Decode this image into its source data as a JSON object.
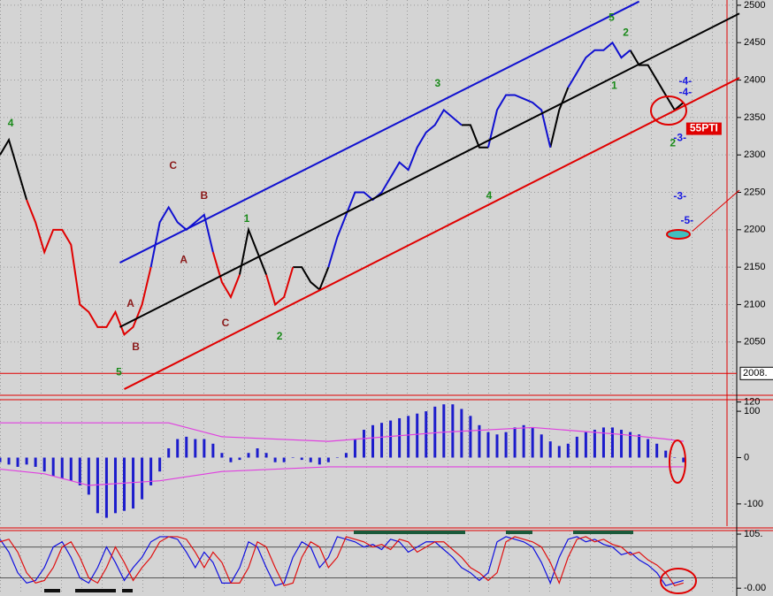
{
  "chart_data": [
    {
      "type": "line",
      "xlim": [
        0,
        83
      ],
      "ylim": [
        1980,
        2507
      ],
      "yticks": [
        2050,
        2100,
        2150,
        2200,
        2250,
        2300,
        2350,
        2400,
        2450,
        2500
      ],
      "grid": true,
      "marker_line": {
        "value": 2008,
        "label": "2008.",
        "color": "#e00000"
      },
      "series": [
        {
          "color": "#000000",
          "values": [
            2300,
            2320,
            2280,
            2240,
            null,
            null,
            null,
            null,
            null,
            null,
            null,
            null,
            null,
            null,
            null,
            null,
            null,
            null,
            null,
            null,
            null,
            null,
            null,
            null,
            null,
            null,
            null,
            2140,
            2200,
            2170,
            2140,
            null,
            null,
            2150,
            2150,
            2130,
            2120,
            2150,
            null,
            null,
            null,
            null,
            null,
            null,
            null,
            null,
            null,
            null,
            null,
            null,
            null,
            null,
            2340,
            2340,
            2310,
            2310,
            null,
            null,
            null,
            null,
            null,
            null,
            2310,
            2360,
            2390,
            null,
            null,
            null,
            null,
            null,
            null,
            2440,
            2420,
            2420,
            2400,
            2380,
            2360,
            2370
          ]
        },
        {
          "color": "#e00000",
          "values": [
            null,
            null,
            null,
            2240,
            2210,
            2170,
            2200,
            2200,
            2180,
            2100,
            2090,
            2070,
            2070,
            2090,
            2060,
            2070,
            2100,
            2150,
            null,
            null,
            null,
            null,
            null,
            null,
            2170,
            2130,
            2110,
            2140,
            null,
            null,
            2140,
            2100,
            2110,
            2150,
            null,
            null,
            null,
            null,
            null,
            null,
            null,
            null,
            null,
            null,
            null,
            null,
            null,
            null,
            null,
            null,
            null,
            null,
            null,
            null,
            null,
            null,
            null,
            null,
            null,
            null,
            null,
            null,
            null,
            null,
            null,
            null,
            null,
            null,
            null,
            null,
            null,
            null,
            null,
            null,
            null,
            null,
            null,
            null
          ]
        },
        {
          "color": "#1010d0",
          "values": [
            null,
            null,
            null,
            null,
            null,
            null,
            null,
            null,
            null,
            null,
            null,
            null,
            null,
            null,
            null,
            null,
            null,
            2150,
            2210,
            2230,
            2210,
            2200,
            2210,
            2220,
            2170,
            null,
            null,
            null,
            null,
            null,
            null,
            null,
            null,
            null,
            null,
            null,
            null,
            2150,
            2190,
            2220,
            2250,
            2250,
            2240,
            2250,
            2270,
            2290,
            2280,
            2310,
            2330,
            2340,
            2360,
            2350,
            2340,
            null,
            null,
            2310,
            2360,
            2380,
            2380,
            2375,
            2370,
            2360,
            2310,
            null,
            2390,
            2410,
            2430,
            2440,
            2440,
            2450,
            2430,
            2440,
            null,
            null,
            null,
            null,
            null,
            null
          ]
        }
      ],
      "trend_lines": [
        {
          "color": "#1010d0",
          "x": [
            13.5,
            72
          ],
          "values": [
            2156,
            2505
          ]
        },
        {
          "color": "#000000",
          "x": [
            13.5,
            83.3
          ],
          "values": [
            2070,
            2489
          ]
        },
        {
          "color": "#e00000",
          "x": [
            14,
            83.3
          ],
          "values": [
            1987,
            2403
          ]
        },
        {
          "color": "#e00000",
          "x": [
            78,
            83.3
          ],
          "values": [
            2198,
            2253
          ]
        }
      ],
      "annotations": [
        {
          "text": "4",
          "x": 1.2,
          "y": 2342,
          "color": "#1a8a1a"
        },
        {
          "text": "C",
          "x": 19.5,
          "y": 2285,
          "color": "#8b1a1a"
        },
        {
          "text": "B",
          "x": 23,
          "y": 2245,
          "color": "#8b1a1a"
        },
        {
          "text": "A",
          "x": 20.7,
          "y": 2159,
          "color": "#8b1a1a"
        },
        {
          "text": "1",
          "x": 27.8,
          "y": 2214,
          "color": "#1a8a1a"
        },
        {
          "text": "A",
          "x": 14.7,
          "y": 2101,
          "color": "#8b1a1a"
        },
        {
          "text": "B",
          "x": 15.3,
          "y": 2043,
          "color": "#8b1a1a"
        },
        {
          "text": "C",
          "x": 25.4,
          "y": 2075,
          "color": "#8b1a1a"
        },
        {
          "text": "2",
          "x": 31.5,
          "y": 2057,
          "color": "#1a8a1a"
        },
        {
          "text": "5",
          "x": 13.4,
          "y": 2009,
          "color": "#1a8a1a"
        },
        {
          "text": "3",
          "x": 49.3,
          "y": 2395,
          "color": "#1a8a1a"
        },
        {
          "text": "4",
          "x": 55.1,
          "y": 2245,
          "color": "#1a8a1a"
        },
        {
          "text": "5",
          "x": 68.9,
          "y": 2483,
          "color": "#1a8a1a"
        },
        {
          "text": "2",
          "x": 70.5,
          "y": 2463,
          "color": "#1a8a1a"
        },
        {
          "text": "1",
          "x": 69.2,
          "y": 2392,
          "color": "#1a8a1a"
        },
        {
          "text": "-4-",
          "x": 77.2,
          "y": 2398,
          "color": "#1a1ae0"
        },
        {
          "text": "-4-",
          "x": 77.2,
          "y": 2383,
          "color": "#1a1ae0"
        },
        {
          "text": "-3-",
          "x": 76.6,
          "y": 2322,
          "color": "#1a1ae0"
        },
        {
          "text": "2",
          "x": 75.8,
          "y": 2315,
          "color": "#1a8a1a"
        },
        {
          "text": "-3-",
          "x": 76.6,
          "y": 2244,
          "color": "#1a1ae0"
        },
        {
          "text": "-5-",
          "x": 77.4,
          "y": 2212,
          "color": "#1a1ae0"
        },
        {
          "text": "55PTI",
          "x": 79.3,
          "y": 2335,
          "color": "#e00000",
          "boxed": true
        }
      ]
    },
    {
      "type": "bar",
      "xlim": [
        0,
        83
      ],
      "ylim": [
        -148,
        125
      ],
      "yticks": [
        120,
        100,
        0,
        -100
      ],
      "color": "#1c1ccc",
      "values": [
        -10,
        -15,
        -20,
        -15,
        -20,
        -30,
        -40,
        -45,
        -50,
        -60,
        -80,
        -120,
        -130,
        -120,
        -115,
        -110,
        -90,
        -60,
        -30,
        20,
        40,
        45,
        40,
        40,
        30,
        10,
        -10,
        -5,
        10,
        20,
        10,
        -10,
        -10,
        0,
        -5,
        -10,
        -15,
        -10,
        0,
        10,
        40,
        60,
        70,
        75,
        80,
        85,
        90,
        95,
        100,
        110,
        115,
        115,
        105,
        90,
        70,
        55,
        50,
        55,
        65,
        70,
        65,
        50,
        35,
        25,
        30,
        45,
        55,
        60,
        65,
        65,
        60,
        55,
        50,
        40,
        30,
        15,
        0,
        -10
      ],
      "bands": [
        {
          "color": "#e040e0",
          "x": [
            0,
            19,
            25,
            37,
            50,
            60,
            70,
            75,
            77
          ],
          "values": [
            75,
            75,
            45,
            35,
            55,
            65,
            50,
            40,
            35
          ]
        },
        {
          "color": "#e040e0",
          "x": [
            0,
            5,
            10,
            18,
            25,
            37,
            77
          ],
          "values": [
            -25,
            -35,
            -60,
            -50,
            -30,
            -20,
            -20
          ]
        }
      ]
    },
    {
      "type": "line",
      "xlim": [
        0,
        83
      ],
      "ylim": [
        -11.7,
        111.9
      ],
      "yticks": [
        {
          "value": 105,
          "label": "105."
        },
        {
          "value": 0,
          "label": "-0.00"
        }
      ],
      "levels": [
        80,
        20
      ],
      "series": [
        {
          "color": "#1010e0",
          "values": [
            95,
            70,
            30,
            10,
            15,
            40,
            80,
            90,
            60,
            20,
            10,
            40,
            80,
            50,
            15,
            40,
            60,
            90,
            100,
            100,
            95,
            70,
            40,
            70,
            50,
            10,
            10,
            40,
            90,
            80,
            40,
            5,
            10,
            60,
            90,
            80,
            40,
            60,
            100,
            95,
            90,
            80,
            85,
            75,
            95,
            90,
            70,
            80,
            90,
            90,
            75,
            60,
            40,
            30,
            15,
            30,
            90,
            100,
            95,
            90,
            80,
            50,
            10,
            60,
            95,
            100,
            90,
            95,
            85,
            80,
            65,
            70,
            55,
            45,
            30,
            5,
            10,
            15
          ]
        },
        {
          "color": "#e01010",
          "values": [
            90,
            95,
            70,
            30,
            10,
            15,
            40,
            80,
            90,
            60,
            20,
            10,
            40,
            80,
            50,
            15,
            40,
            60,
            90,
            100,
            100,
            95,
            70,
            40,
            70,
            50,
            10,
            10,
            40,
            90,
            80,
            40,
            5,
            10,
            60,
            90,
            80,
            40,
            60,
            100,
            95,
            90,
            80,
            85,
            75,
            95,
            90,
            70,
            80,
            90,
            90,
            75,
            60,
            40,
            30,
            15,
            30,
            90,
            100,
            95,
            90,
            80,
            50,
            10,
            60,
            95,
            100,
            90,
            95,
            85,
            80,
            65,
            70,
            55,
            45,
            30,
            5,
            10
          ]
        }
      ]
    }
  ]
}
